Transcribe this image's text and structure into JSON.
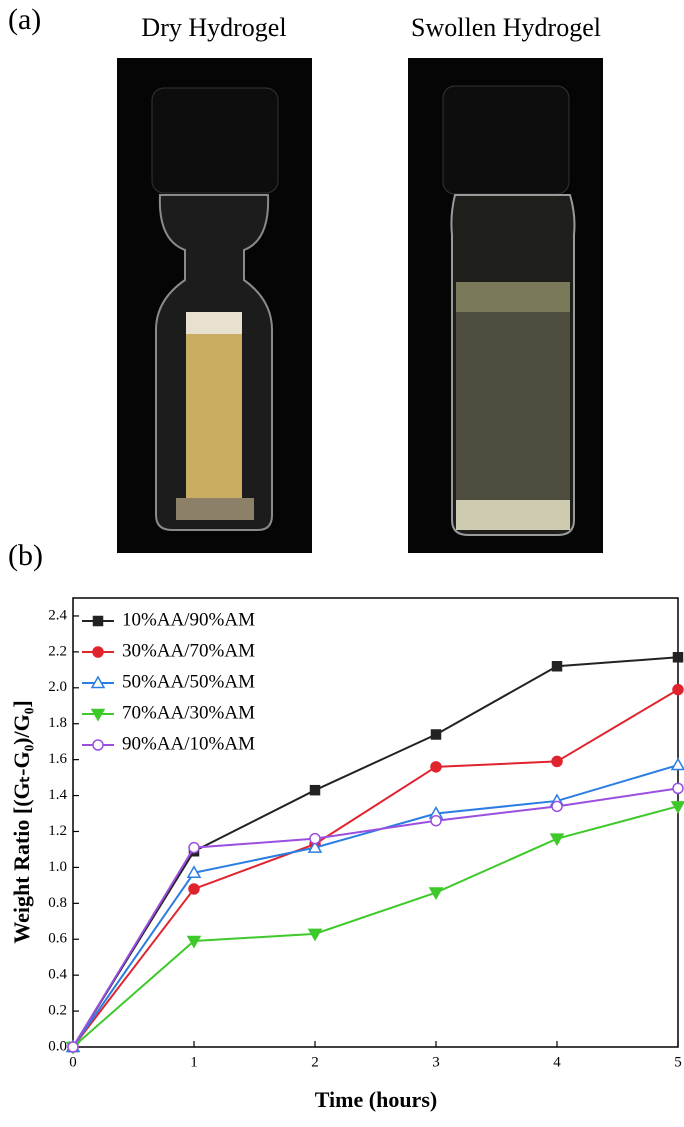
{
  "panel_labels": [
    "(a)",
    "(b)"
  ],
  "photos": [
    {
      "caption": "Dry Hydrogel"
    },
    {
      "caption": "Swollen Hydrogel"
    }
  ],
  "chart_data": {
    "type": "line",
    "x_label": "Time (hours)",
    "y_label": "Weight Ratio [(Gₜ-G₀)/G₀]",
    "x": [
      0,
      1,
      2,
      3,
      4,
      5
    ],
    "xlim": [
      0,
      5
    ],
    "xticks": [
      0,
      1,
      2,
      3,
      4,
      5
    ],
    "ylim": [
      0,
      2.5
    ],
    "yticks": [
      {
        "value": 0,
        "label": "0.0"
      },
      0.2,
      0.4,
      0.6,
      0.8,
      {
        "value": 1,
        "label": "1.0"
      },
      1.2,
      1.4,
      1.6,
      1.8,
      {
        "value": 2,
        "label": "2.0"
      },
      2.2,
      2.4
    ],
    "legend": "upper left",
    "series": [
      {
        "name": "10%AA/90%AM",
        "color": "#222222",
        "marker": "square",
        "filled": true,
        "values": [
          0,
          1.09,
          1.43,
          1.74,
          2.12,
          2.17
        ]
      },
      {
        "name": "30%AA/70%AM",
        "color": "#e0242e",
        "marker": "circle",
        "filled": true,
        "values": [
          0,
          0.88,
          1.13,
          1.56,
          1.59,
          1.99
        ]
      },
      {
        "name": "50%AA/50%AM",
        "color": "#2a7de1",
        "marker": "triangle-up",
        "filled": false,
        "values": [
          0,
          0.97,
          1.11,
          1.3,
          1.37,
          1.57
        ]
      },
      {
        "name": "70%AA/30%AM",
        "color": "#3ec92a",
        "marker": "triangle-down",
        "filled": true,
        "values": [
          0,
          0.59,
          0.63,
          0.86,
          1.16,
          1.34
        ]
      },
      {
        "name": "90%AA/10%AM",
        "color": "#9b4fe0",
        "marker": "circle",
        "filled": false,
        "values": [
          0,
          1.11,
          1.16,
          1.26,
          1.34,
          1.44
        ]
      }
    ]
  }
}
